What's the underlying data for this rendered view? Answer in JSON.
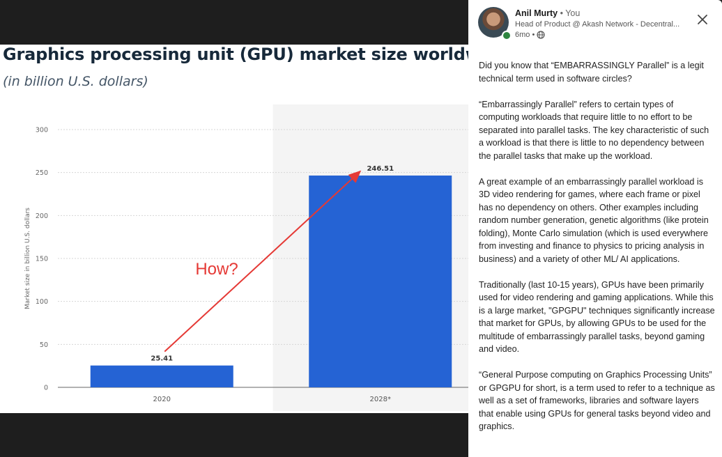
{
  "chart_image": {
    "heading": "Graphics processing unit (GPU) market size worldwide",
    "subheading": "(in billion U.S. dollars)",
    "annotation": "How?",
    "colors": {
      "bar": "#2563d4",
      "annotation": "#e53935",
      "highlight_bg": "#f4f4f4",
      "grid": "#d6d6d6"
    }
  },
  "chart_data": {
    "type": "bar",
    "categories": [
      "2020",
      "2028*"
    ],
    "values": [
      25.41,
      246.51
    ],
    "value_labels": [
      "25.41",
      "246.51"
    ],
    "xlabel": "",
    "ylabel": "Market size in billion U.S. dollars",
    "ylim": [
      0,
      300
    ],
    "yticks": [
      0,
      50,
      100,
      150,
      200,
      250,
      300
    ],
    "grid": true,
    "highlighted_category": "2028*"
  },
  "post": {
    "author": "Anil Murty",
    "separator": "•",
    "you_label": "You",
    "headline": "Head of Product @ Akash Network - Decentral...",
    "time": "6mo •",
    "icons": {
      "visibility": "globe-icon",
      "close": "close-icon"
    },
    "paragraphs": [
      "Did you know that “EMBARRASSINGLY Parallel” is a legit technical term used in software circles?",
      "“Embarrassingly Parallel” refers to certain types of computing workloads that require little to no effort to be separated into parallel tasks. The key characteristic of such a workload is that there is little to no dependency between the parallel tasks that make up the workload.",
      "A great example of an embarrassingly parallel workload is 3D video rendering for games, where each frame or pixel has no dependency on others. Other examples including random number generation, genetic algorithms (like protein folding), Monte Carlo simulation (which is used everywhere from investing and finance to physics to pricing analysis in business) and a variety of other ML/ AI applications.",
      "Traditionally (last 10-15 years), GPUs have been primarily used for video rendering and gaming applications. While this is a large market, \"GPGPU\" techniques significantly increase that market for GPUs, by allowing GPUs to be used for the multitude of embarrassingly parallel tasks, beyond gaming and video.",
      " “General Purpose computing on Graphics Processing Units” or GPGPU for short, is a term used to refer to a technique as well as a set of frameworks, libraries and software layers that enable using GPUs for general tasks beyond video and graphics."
    ]
  }
}
